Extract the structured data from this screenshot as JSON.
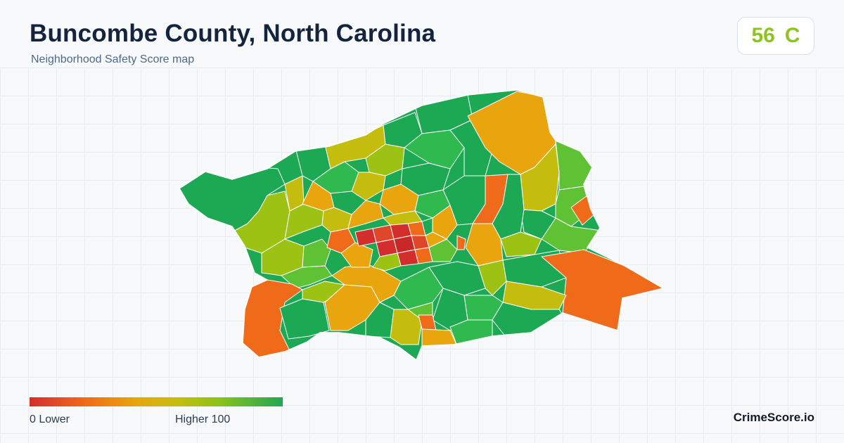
{
  "header": {
    "title": "Buncombe County, North Carolina",
    "subtitle": "Neighborhood Safety Score map"
  },
  "score": {
    "value": "56",
    "grade": "C",
    "color": "#8fc31f"
  },
  "legend": {
    "min_label": "0  Lower",
    "max_label": "Higher  100",
    "colors": [
      "#d42d2d",
      "#ef6b1a",
      "#e9a50d",
      "#c5bd0e",
      "#8cc21a",
      "#1da854"
    ]
  },
  "brand": "CrimeScore.io",
  "map": {
    "region_colors": {
      "high": "#1da854",
      "good": "#2fb94f",
      "light_green": "#5ec234",
      "yellow_green": "#9cc313",
      "olive": "#c5bd0e",
      "orange": "#e9a50d",
      "dark_orange": "#ef6b1a",
      "red": "#d42d2d"
    }
  }
}
